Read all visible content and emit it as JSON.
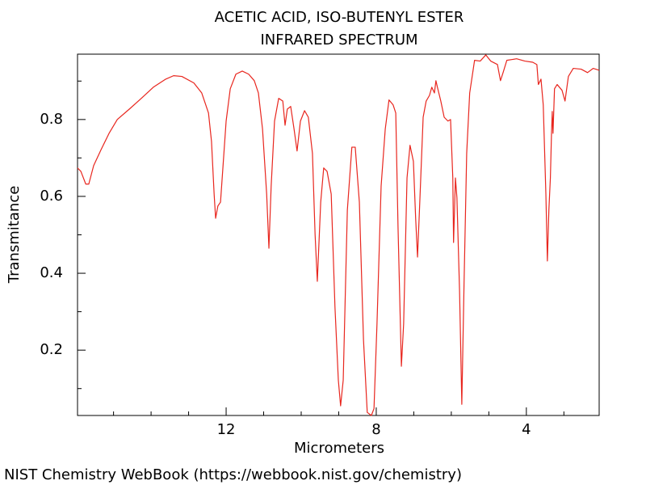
{
  "chart_data": {
    "type": "line",
    "title": "ACETIC ACID, ISO-BUTENYL ESTER",
    "subtitle": "INFRARED SPECTRUM",
    "x_label": "Micrometers",
    "y_label": "Transmitance",
    "source": "NIST Chemistry WebBook (https://webbook.nist.gov/chemistry)",
    "color": "#e8261e",
    "xlim": [
      15.96,
      2.06
    ],
    "ylim": [
      0.03,
      0.97
    ],
    "xticks": [
      12,
      8,
      4
    ],
    "yticks": [
      0.2,
      0.4,
      0.6,
      0.8
    ],
    "xminorticks": [
      15,
      14,
      13,
      11,
      10,
      9,
      7,
      6,
      5,
      3
    ],
    "yminorticks": [
      0.1,
      0.3,
      0.5,
      0.7,
      0.9
    ],
    "x": [
      15.96,
      15.87,
      15.74,
      15.66,
      15.53,
      15.33,
      15.12,
      14.9,
      14.58,
      14.26,
      13.94,
      13.61,
      13.4,
      13.18,
      12.86,
      12.65,
      12.47,
      12.39,
      12.32,
      12.28,
      12.22,
      12.15,
      12.09,
      12.0,
      11.89,
      11.74,
      11.57,
      11.4,
      11.25,
      11.14,
      11.03,
      10.92,
      10.86,
      10.8,
      10.71,
      10.6,
      10.49,
      10.43,
      10.37,
      10.28,
      10.19,
      10.11,
      10.02,
      9.91,
      9.81,
      9.7,
      9.63,
      9.57,
      9.48,
      9.4,
      9.31,
      9.2,
      9.1,
      9.01,
      8.95,
      8.88,
      8.77,
      8.65,
      8.56,
      8.45,
      8.34,
      8.24,
      8.13,
      8.06,
      7.98,
      7.87,
      7.76,
      7.66,
      7.55,
      7.48,
      7.42,
      7.33,
      7.27,
      7.18,
      7.1,
      7.01,
      6.95,
      6.9,
      6.84,
      6.75,
      6.67,
      6.58,
      6.52,
      6.45,
      6.41,
      6.37,
      6.28,
      6.19,
      6.09,
      6.02,
      5.96,
      5.94,
      5.89,
      5.85,
      5.78,
      5.72,
      5.66,
      5.59,
      5.51,
      5.38,
      5.23,
      5.08,
      4.95,
      4.77,
      4.69,
      4.62,
      4.52,
      4.26,
      4.04,
      3.83,
      3.72,
      3.68,
      3.61,
      3.55,
      3.48,
      3.44,
      3.4,
      3.36,
      3.33,
      3.31,
      3.29,
      3.25,
      3.18,
      3.05,
      2.97,
      2.88,
      2.75,
      2.54,
      2.37,
      2.22,
      2.06
    ],
    "values": [
      0.674,
      0.665,
      0.632,
      0.632,
      0.68,
      0.722,
      0.764,
      0.8,
      0.827,
      0.855,
      0.884,
      0.905,
      0.914,
      0.912,
      0.895,
      0.869,
      0.817,
      0.743,
      0.606,
      0.543,
      0.575,
      0.585,
      0.669,
      0.796,
      0.88,
      0.918,
      0.926,
      0.918,
      0.901,
      0.869,
      0.775,
      0.606,
      0.465,
      0.627,
      0.796,
      0.855,
      0.848,
      0.785,
      0.827,
      0.834,
      0.775,
      0.718,
      0.796,
      0.823,
      0.806,
      0.712,
      0.501,
      0.379,
      0.585,
      0.674,
      0.665,
      0.606,
      0.312,
      0.122,
      0.055,
      0.122,
      0.564,
      0.728,
      0.728,
      0.585,
      0.227,
      0.038,
      0.03,
      0.048,
      0.269,
      0.627,
      0.775,
      0.851,
      0.838,
      0.817,
      0.522,
      0.158,
      0.269,
      0.648,
      0.733,
      0.691,
      0.543,
      0.442,
      0.585,
      0.806,
      0.848,
      0.863,
      0.884,
      0.869,
      0.901,
      0.884,
      0.848,
      0.806,
      0.796,
      0.8,
      0.648,
      0.48,
      0.648,
      0.596,
      0.354,
      0.059,
      0.375,
      0.712,
      0.869,
      0.954,
      0.952,
      0.968,
      0.952,
      0.943,
      0.901,
      0.922,
      0.954,
      0.958,
      0.952,
      0.949,
      0.943,
      0.891,
      0.905,
      0.838,
      0.606,
      0.432,
      0.564,
      0.648,
      0.764,
      0.821,
      0.764,
      0.88,
      0.891,
      0.876,
      0.848,
      0.912,
      0.933,
      0.931,
      0.922,
      0.933,
      0.928
    ]
  }
}
